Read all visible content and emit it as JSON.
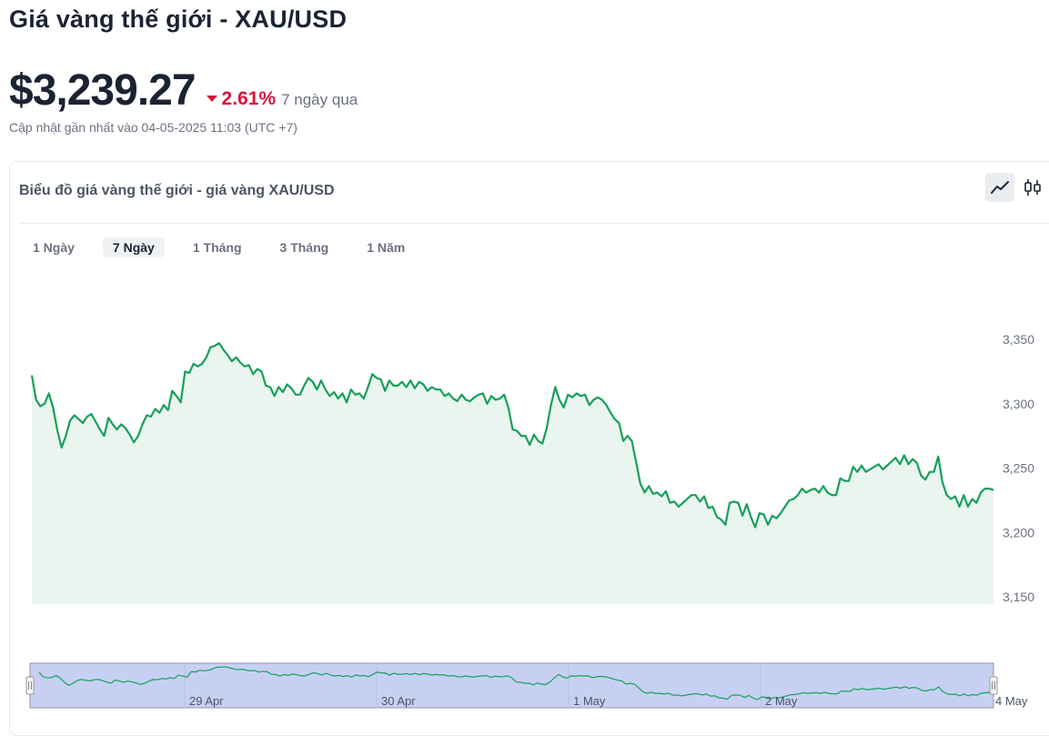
{
  "page": {
    "title": "Giá vàng thế giới - XAU/USD",
    "price": "$3,239.27",
    "change_pct": "2.61%",
    "change_period": "7 ngày qua",
    "change_icon": "caret-down-icon",
    "updated": "Cập nhật gần nhất vào 04-05-2025 11:03 (UTC +7)"
  },
  "chart_card": {
    "title": "Biểu đồ giá vàng thế giới - giá vàng XAU/USD",
    "chart_type_options": [
      "line-chart-icon",
      "candlestick-icon"
    ],
    "selected_chart_type": "line-chart-icon",
    "range_tabs": [
      "1 Ngày",
      "7 Ngày",
      "1 Tháng",
      "3 Tháng",
      "1 Năm"
    ],
    "selected_range": "7 Ngày"
  },
  "colors": {
    "line": "#16a05a",
    "area": "#eaf5ef",
    "down": "#d9153a",
    "navigator_fill": "#c7d0f3",
    "navigator_border": "#8c99a9"
  },
  "chart_data": {
    "type": "line",
    "title": "",
    "xlabel": "",
    "ylabel": "",
    "ylim": [
      3150,
      3350
    ],
    "y_ticks": [
      3150,
      3200,
      3250,
      3300,
      3350
    ],
    "y_tick_labels": [
      "3,150",
      "3,200",
      "3,250",
      "3,300",
      "3,350"
    ],
    "navigator_labels": [
      "29 Apr",
      "30 Apr",
      "1 May",
      "2 May",
      "4 May"
    ],
    "grid": false,
    "series": [
      {
        "values": [
          3322,
          3303,
          3298,
          3300,
          3308,
          3297,
          3279,
          3266,
          3275,
          3287,
          3291,
          3288,
          3285,
          3290,
          3292,
          3286,
          3280,
          3275,
          3289,
          3284,
          3280,
          3284,
          3281,
          3276,
          3270,
          3275,
          3284,
          3291,
          3290,
          3296,
          3293,
          3299,
          3295,
          3310,
          3306,
          3301,
          3325,
          3324,
          3331,
          3329,
          3331,
          3336,
          3344,
          3345,
          3347,
          3342,
          3338,
          3333,
          3336,
          3332,
          3329,
          3330,
          3323,
          3327,
          3325,
          3314,
          3313,
          3306,
          3313,
          3309,
          3315,
          3312,
          3307,
          3307,
          3314,
          3320,
          3317,
          3311,
          3318,
          3311,
          3306,
          3309,
          3304,
          3308,
          3301,
          3311,
          3307,
          3308,
          3304,
          3313,
          3323,
          3320,
          3319,
          3310,
          3318,
          3314,
          3314,
          3317,
          3313,
          3318,
          3312,
          3317,
          3315,
          3310,
          3313,
          3311,
          3311,
          3306,
          3308,
          3304,
          3302,
          3307,
          3303,
          3302,
          3305,
          3307,
          3308,
          3300,
          3306,
          3303,
          3304,
          3307,
          3297,
          3280,
          3279,
          3275,
          3275,
          3268,
          3276,
          3271,
          3269,
          3281,
          3299,
          3313,
          3303,
          3297,
          3307,
          3305,
          3308,
          3306,
          3307,
          3299,
          3303,
          3305,
          3303,
          3299,
          3293,
          3288,
          3285,
          3271,
          3275,
          3271,
          3255,
          3238,
          3231,
          3236,
          3230,
          3231,
          3228,
          3232,
          3223,
          3224,
          3220,
          3223,
          3226,
          3229,
          3229,
          3224,
          3228,
          3219,
          3220,
          3212,
          3210,
          3206,
          3223,
          3224,
          3223,
          3213,
          3222,
          3212,
          3204,
          3215,
          3214,
          3206,
          3213,
          3211,
          3215,
          3220,
          3225,
          3226,
          3229,
          3234,
          3231,
          3233,
          3234,
          3231,
          3236,
          3231,
          3229,
          3229,
          3242,
          3240,
          3240,
          3251,
          3247,
          3252,
          3247,
          3249,
          3251,
          3253,
          3249,
          3252,
          3255,
          3258,
          3253,
          3260,
          3253,
          3257,
          3254,
          3244,
          3241,
          3247,
          3247,
          3259,
          3239,
          3229,
          3226,
          3228,
          3220,
          3229,
          3220,
          3226,
          3223,
          3231,
          3234,
          3234,
          3233
        ]
      }
    ]
  }
}
